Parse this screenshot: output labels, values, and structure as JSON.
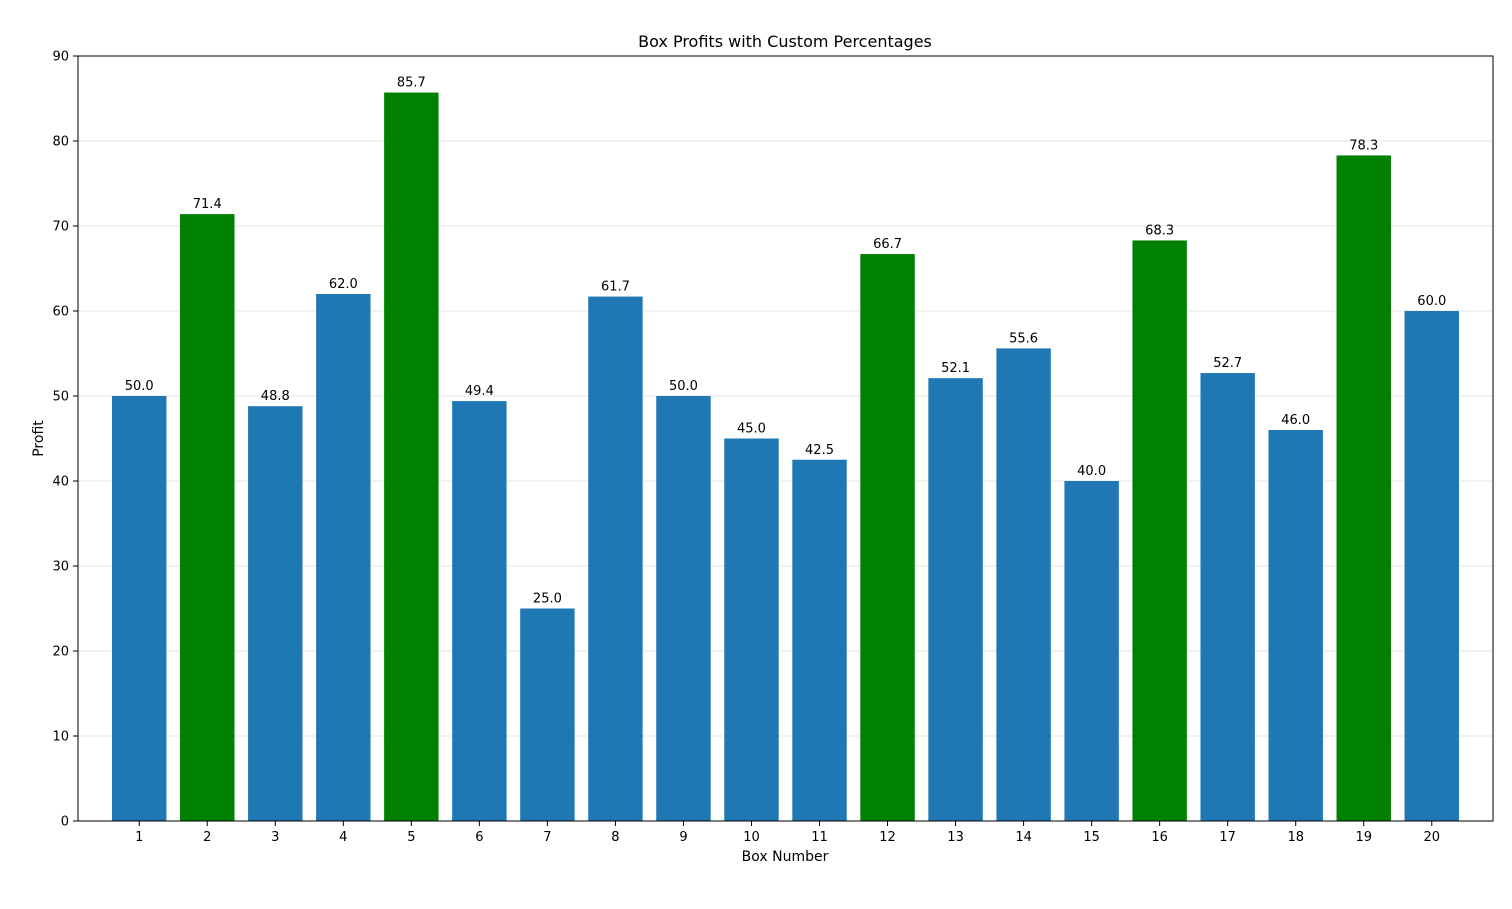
{
  "chart_data": {
    "type": "bar",
    "title": "Box Profits with Custom Percentages",
    "xlabel": "Box Number",
    "ylabel": "Profit",
    "categories": [
      "1",
      "2",
      "3",
      "4",
      "5",
      "6",
      "7",
      "8",
      "9",
      "10",
      "11",
      "12",
      "13",
      "14",
      "15",
      "16",
      "17",
      "18",
      "19",
      "20"
    ],
    "values": [
      50.0,
      71.4,
      48.8,
      62.0,
      85.7,
      49.4,
      25.0,
      61.7,
      50.0,
      45.0,
      42.5,
      66.7,
      52.1,
      55.6,
      40.0,
      68.3,
      52.7,
      46.0,
      78.3,
      60.0
    ],
    "data_labels": [
      "50.0",
      "71.4",
      "48.8",
      "62.0",
      "85.7",
      "49.4",
      "25.0",
      "61.7",
      "50.0",
      "45.0",
      "42.5",
      "66.7",
      "52.1",
      "55.6",
      "40.0",
      "68.3",
      "52.7",
      "46.0",
      "78.3",
      "60.0"
    ],
    "highlighted": [
      false,
      true,
      false,
      false,
      true,
      false,
      false,
      false,
      false,
      false,
      false,
      true,
      false,
      false,
      false,
      true,
      false,
      false,
      true,
      false
    ],
    "ylim": [
      0,
      90
    ],
    "yticks": [
      0,
      10,
      20,
      30,
      40,
      50,
      60,
      70,
      80,
      90
    ],
    "grid": "horizontal",
    "colors": {
      "default": "#1f77b4",
      "highlight": "#008000",
      "grid": "#e6e6e6",
      "axis": "#000000"
    }
  }
}
